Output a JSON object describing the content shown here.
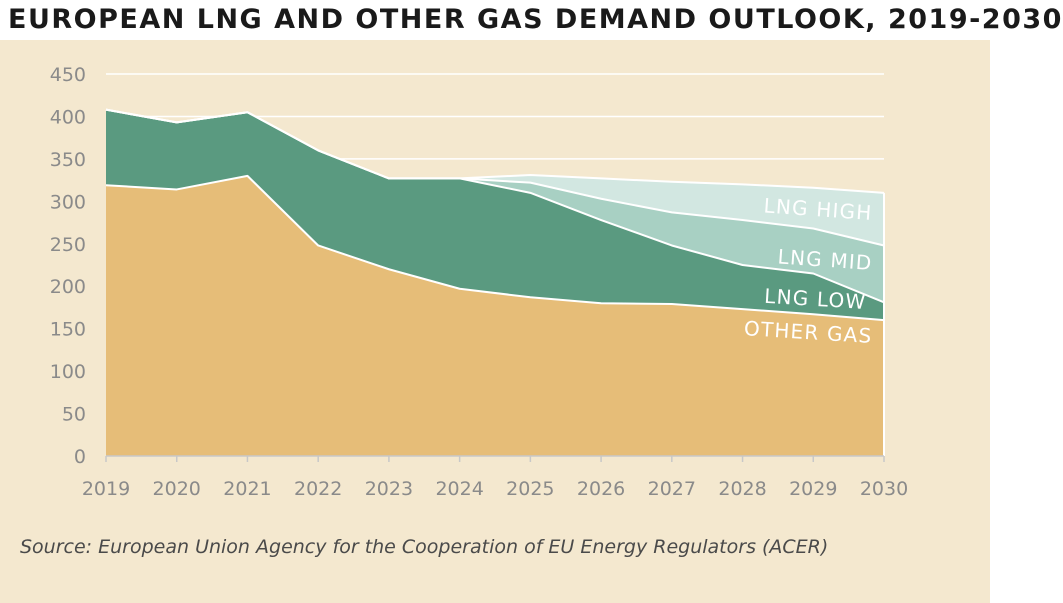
{
  "title": "EUROPEAN LNG AND OTHER GAS DEMAND OUTLOOK, 2019-2030",
  "source": "Source: European Union Agency for the Cooperation of EU Energy Regulators (ACER)",
  "colors": {
    "other_gas": "#e6bd78",
    "lng_low": "#5a9a80",
    "lng_mid": "#a8d0c3",
    "lng_high": "#d2e7e1",
    "background": "#f4e8cf",
    "grid": "#ffffff"
  },
  "chart_data": {
    "type": "area",
    "x": [
      "2019",
      "2020",
      "2021",
      "2022",
      "2023",
      "2024",
      "2025",
      "2026",
      "2027",
      "2028",
      "2029",
      "2030"
    ],
    "ylim": [
      0,
      450
    ],
    "yticks": [
      0,
      50,
      100,
      150,
      200,
      250,
      300,
      350,
      400,
      450
    ],
    "stacked_cumulative": true,
    "series": [
      {
        "name": "OTHER GAS",
        "values": [
          319,
          314,
          330,
          248,
          220,
          197,
          187,
          180,
          179,
          173,
          167,
          160
        ]
      },
      {
        "name": "LNG LOW",
        "values": [
          408,
          393,
          405,
          360,
          327,
          327,
          310,
          278,
          248,
          225,
          215,
          181
        ]
      },
      {
        "name": "LNG MID",
        "values": [
          408,
          393,
          405,
          360,
          327,
          327,
          322,
          303,
          287,
          278,
          268,
          248
        ]
      },
      {
        "name": "LNG HIGH",
        "values": [
          408,
          393,
          405,
          360,
          327,
          327,
          331,
          327,
          323,
          320,
          316,
          310
        ]
      }
    ],
    "grid": true
  }
}
